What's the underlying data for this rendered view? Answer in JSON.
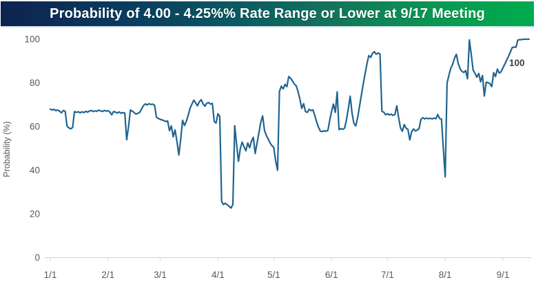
{
  "header": {
    "title": "Probability of 4.00 - 4.25%% Rate Range or Lower at 9/17 Meeting",
    "gradient_left_color": "#0e2350",
    "gradient_mid_color": "#13755a",
    "gradient_right_color": "#00ab4e",
    "text_color": "#ffffff"
  },
  "chart_data": {
    "type": "line",
    "title": "Probability of 4.00 - 4.25%% Rate Range or Lower at 9/17 Meeting",
    "xlabel": "",
    "ylabel": "Probability (%)",
    "ylim": [
      0,
      100
    ],
    "y_ticks": [
      0,
      20,
      40,
      60,
      80,
      100
    ],
    "x_tick_labels": [
      "1/1",
      "2/1",
      "3/1",
      "4/1",
      "5/1",
      "6/1",
      "7/1",
      "8/1",
      "9/1"
    ],
    "x_ticks": [
      {
        "label": "1/1",
        "day": 0
      },
      {
        "label": "2/1",
        "day": 31
      },
      {
        "label": "3/1",
        "day": 59
      },
      {
        "label": "4/1",
        "day": 90
      },
      {
        "label": "5/1",
        "day": 120
      },
      {
        "label": "6/1",
        "day": 151
      },
      {
        "label": "7/1",
        "day": 181
      },
      {
        "label": "8/1",
        "day": 212
      },
      {
        "label": "9/1",
        "day": 243
      }
    ],
    "x_domain_days": [
      0,
      257
    ],
    "grid": "off",
    "legend": "none",
    "line_color": "#1f6490",
    "axis_color": "#d9d9d9",
    "tick_label_color": "#595959",
    "end_label": {
      "text": "100",
      "value": 100,
      "color": "#3f3f3f"
    },
    "series": [
      {
        "name": "probability",
        "points": [
          [
            0,
            68
          ],
          [
            1,
            67.6
          ],
          [
            2,
            67.9
          ],
          [
            3,
            67.3
          ],
          [
            4,
            67.6
          ],
          [
            5,
            67.1
          ],
          [
            6,
            66.3
          ],
          [
            7,
            67.4
          ],
          [
            8,
            67
          ],
          [
            9,
            60.2
          ],
          [
            10,
            59.4
          ],
          [
            11,
            59
          ],
          [
            12,
            59.6
          ],
          [
            13,
            66.9
          ],
          [
            14,
            66.5
          ],
          [
            15,
            66.8
          ],
          [
            16,
            66.3
          ],
          [
            17,
            66.8
          ],
          [
            18,
            66.4
          ],
          [
            19,
            67
          ],
          [
            20,
            66.6
          ],
          [
            21,
            67.1
          ],
          [
            22,
            67.4
          ],
          [
            23,
            66.9
          ],
          [
            24,
            67.2
          ],
          [
            25,
            67
          ],
          [
            26,
            67.5
          ],
          [
            27,
            67.2
          ],
          [
            28,
            66.9
          ],
          [
            29,
            67.4
          ],
          [
            30,
            67.1
          ],
          [
            31,
            67.3
          ],
          [
            32,
            66.6
          ],
          [
            33,
            65.4
          ],
          [
            34,
            66.9
          ],
          [
            35,
            66.6
          ],
          [
            36,
            66.2
          ],
          [
            37,
            66.7
          ],
          [
            38,
            66.1
          ],
          [
            39,
            66.4
          ],
          [
            40,
            66.2
          ],
          [
            41,
            54
          ],
          [
            42,
            60.1
          ],
          [
            43,
            67.6
          ],
          [
            44,
            67.1
          ],
          [
            45,
            66.4
          ],
          [
            46,
            65.7
          ],
          [
            47,
            66.1
          ],
          [
            48,
            66.5
          ],
          [
            49,
            68.1
          ],
          [
            50,
            69.6
          ],
          [
            51,
            70.4
          ],
          [
            52,
            69.9
          ],
          [
            53,
            70.5
          ],
          [
            54,
            70.1
          ],
          [
            55,
            70.3
          ],
          [
            56,
            69.7
          ],
          [
            57,
            64.3
          ],
          [
            58,
            63.7
          ],
          [
            59,
            63.3
          ],
          [
            60,
            63.1
          ],
          [
            61,
            62.7
          ],
          [
            62,
            62.3
          ],
          [
            63,
            62.6
          ],
          [
            64,
            58.1
          ],
          [
            65,
            60.3
          ],
          [
            66,
            55.3
          ],
          [
            67,
            58.5
          ],
          [
            68,
            53.1
          ],
          [
            69,
            47
          ],
          [
            70,
            54.2
          ],
          [
            71,
            62.9
          ],
          [
            72,
            60.5
          ],
          [
            73,
            62.3
          ],
          [
            74,
            65.1
          ],
          [
            75,
            68.3
          ],
          [
            76,
            70.2
          ],
          [
            77,
            72.1
          ],
          [
            78,
            70.9
          ],
          [
            79,
            69.5
          ],
          [
            80,
            71.3
          ],
          [
            81,
            72.3
          ],
          [
            82,
            70.5
          ],
          [
            83,
            69.3
          ],
          [
            84,
            70.7
          ],
          [
            85,
            71
          ],
          [
            86,
            70.3
          ],
          [
            87,
            70.6
          ],
          [
            88,
            62.4
          ],
          [
            89,
            61.6
          ],
          [
            90,
            65.9
          ],
          [
            91,
            64.6
          ],
          [
            92,
            25.6
          ],
          [
            93,
            24.3
          ],
          [
            94,
            24.9
          ],
          [
            95,
            24.2
          ],
          [
            96,
            23.5
          ],
          [
            97,
            22.7
          ],
          [
            98,
            24.3
          ],
          [
            99,
            60.4
          ],
          [
            100,
            51.9
          ],
          [
            101,
            44.1
          ],
          [
            102,
            49.9
          ],
          [
            103,
            52.9
          ],
          [
            104,
            50.7
          ],
          [
            105,
            48.9
          ],
          [
            106,
            52.5
          ],
          [
            107,
            50.3
          ],
          [
            108,
            53.3
          ],
          [
            109,
            55.1
          ],
          [
            110,
            47.7
          ],
          [
            111,
            52.4
          ],
          [
            112,
            57.1
          ],
          [
            113,
            61.9
          ],
          [
            114,
            64.9
          ],
          [
            115,
            58.3
          ],
          [
            116,
            55.9
          ],
          [
            117,
            54.3
          ],
          [
            118,
            52.5
          ],
          [
            119,
            51.3
          ],
          [
            120,
            50.5
          ],
          [
            121,
            44.3
          ],
          [
            122,
            40
          ],
          [
            123,
            76.1
          ],
          [
            124,
            78.5
          ],
          [
            125,
            77.3
          ],
          [
            126,
            79.3
          ],
          [
            127,
            78.3
          ],
          [
            128,
            82.9
          ],
          [
            129,
            82.1
          ],
          [
            130,
            80.9
          ],
          [
            131,
            79.5
          ],
          [
            132,
            78.7
          ],
          [
            133,
            76.1
          ],
          [
            134,
            72.5
          ],
          [
            135,
            68.3
          ],
          [
            136,
            70.5
          ],
          [
            137,
            66.9
          ],
          [
            138,
            66.5
          ],
          [
            139,
            67.9
          ],
          [
            140,
            67.3
          ],
          [
            141,
            67.7
          ],
          [
            142,
            65.1
          ],
          [
            143,
            62.1
          ],
          [
            144,
            59.7
          ],
          [
            145,
            57.9
          ],
          [
            146,
            57.7
          ],
          [
            147,
            58.1
          ],
          [
            148,
            57.9
          ],
          [
            149,
            58.2
          ],
          [
            150,
            62.9
          ],
          [
            151,
            67
          ],
          [
            152,
            70.3
          ],
          [
            153,
            66.5
          ],
          [
            154,
            75.9
          ],
          [
            155,
            58.6
          ],
          [
            156,
            59.1
          ],
          [
            157,
            58.7
          ],
          [
            158,
            59.3
          ],
          [
            159,
            63.1
          ],
          [
            160,
            68.2
          ],
          [
            161,
            73.9
          ],
          [
            162,
            66.1
          ],
          [
            163,
            61.5
          ],
          [
            164,
            60.3
          ],
          [
            165,
            64.1
          ],
          [
            166,
            69.2
          ],
          [
            167,
            74.3
          ],
          [
            168,
            79.4
          ],
          [
            169,
            84.2
          ],
          [
            170,
            88.7
          ],
          [
            171,
            92.5
          ],
          [
            172,
            91.7
          ],
          [
            173,
            93.5
          ],
          [
            174,
            94.3
          ],
          [
            175,
            93.1
          ],
          [
            176,
            93.7
          ],
          [
            177,
            93.2
          ],
          [
            178,
            67
          ],
          [
            179,
            66.6
          ],
          [
            180,
            65.4
          ],
          [
            181,
            65.9
          ],
          [
            182,
            65.3
          ],
          [
            183,
            65.7
          ],
          [
            184,
            65.1
          ],
          [
            185,
            65.5
          ],
          [
            186,
            69.5
          ],
          [
            187,
            64.1
          ],
          [
            188,
            59.4
          ],
          [
            189,
            57.9
          ],
          [
            190,
            60.9
          ],
          [
            191,
            59.3
          ],
          [
            192,
            58.7
          ],
          [
            193,
            53.9
          ],
          [
            194,
            57.7
          ],
          [
            195,
            58.9
          ],
          [
            196,
            58
          ],
          [
            197,
            58.4
          ],
          [
            198,
            59.1
          ],
          [
            199,
            63.3
          ],
          [
            200,
            64.1
          ],
          [
            201,
            63.5
          ],
          [
            202,
            63.9
          ],
          [
            203,
            63.6
          ],
          [
            204,
            63.8
          ],
          [
            205,
            63.5
          ],
          [
            206,
            63.9
          ],
          [
            207,
            63.6
          ],
          [
            208,
            65.5
          ],
          [
            209,
            63.7
          ],
          [
            210,
            63.5
          ],
          [
            211,
            49.9
          ],
          [
            212,
            37
          ],
          [
            213,
            79.9
          ],
          [
            214,
            83.5
          ],
          [
            215,
            86.7
          ],
          [
            216,
            88.5
          ],
          [
            217,
            91.3
          ],
          [
            218,
            93.1
          ],
          [
            219,
            88.9
          ],
          [
            220,
            86.5
          ],
          [
            221,
            85.3
          ],
          [
            222,
            84.8
          ],
          [
            223,
            85.6
          ],
          [
            224,
            81.9
          ],
          [
            225,
            99.7
          ],
          [
            226,
            93.1
          ],
          [
            227,
            85.9
          ],
          [
            228,
            84.4
          ],
          [
            229,
            82.6
          ],
          [
            230,
            84.3
          ],
          [
            231,
            80.5
          ],
          [
            232,
            83.4
          ],
          [
            233,
            74
          ],
          [
            234,
            80.3
          ],
          [
            235,
            80.1
          ],
          [
            236,
            79.7
          ],
          [
            237,
            78.3
          ],
          [
            238,
            84.7
          ],
          [
            239,
            82.9
          ],
          [
            240,
            86.3
          ],
          [
            241,
            84.5
          ],
          [
            242,
            85.1
          ],
          [
            243,
            86.9
          ],
          [
            244,
            88.6
          ],
          [
            245,
            90.4
          ],
          [
            246,
            92.2
          ],
          [
            247,
            94.1
          ],
          [
            248,
            96.2
          ],
          [
            249,
            96.4
          ],
          [
            250,
            96.3
          ],
          [
            251,
            99.6
          ],
          [
            252,
            99.8
          ],
          [
            253,
            99.8
          ],
          [
            254,
            100
          ],
          [
            255,
            100
          ],
          [
            256,
            100
          ],
          [
            257,
            100
          ]
        ]
      }
    ]
  }
}
